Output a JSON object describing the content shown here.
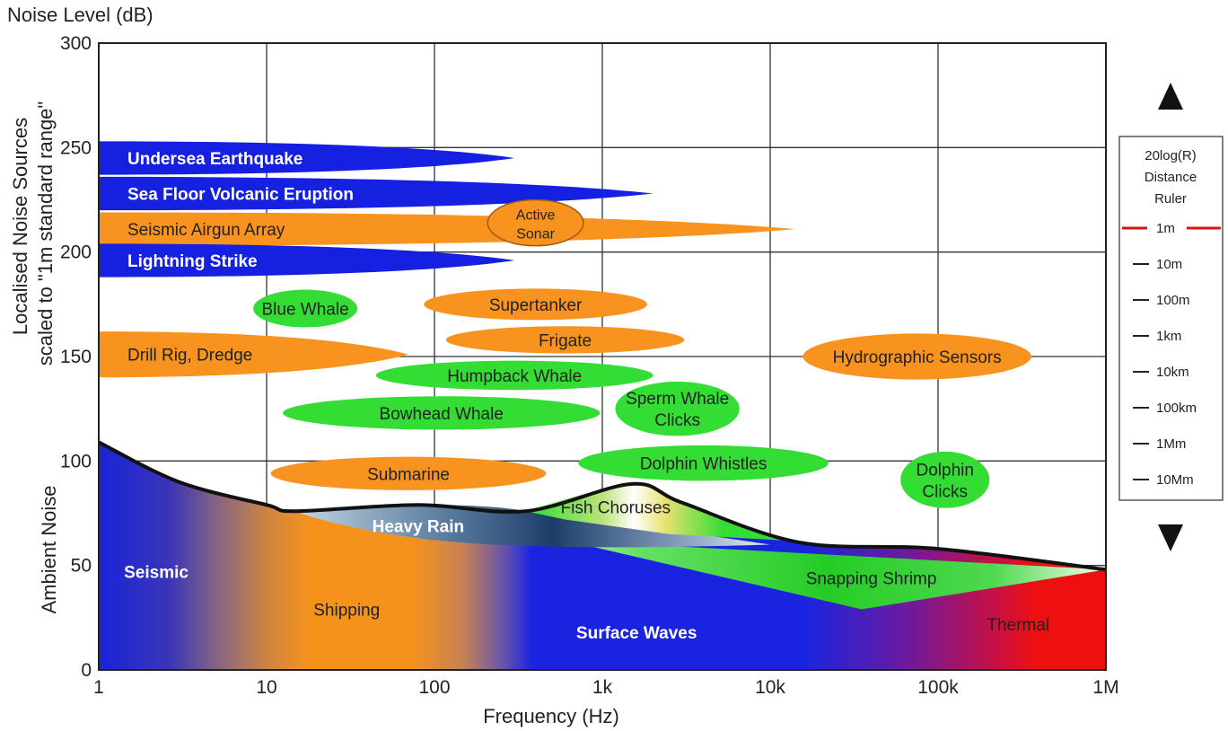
{
  "chart_data": {
    "type": "area",
    "title": "Noise Level (dB)",
    "xlabel": "Frequency (Hz)",
    "ylabel_upper_line1": "Localised Noise Sources",
    "ylabel_upper_line2": "scaled to \"1m standard range\"",
    "ylabel_lower": "Ambient Noise",
    "x_scale": "log",
    "xlim": [
      1,
      1000000
    ],
    "ylim": [
      0,
      300
    ],
    "grid": true,
    "x_ticks": [
      {
        "value": 1,
        "label": "1"
      },
      {
        "value": 10,
        "label": "10"
      },
      {
        "value": 100,
        "label": "100"
      },
      {
        "value": 1000,
        "label": "1k"
      },
      {
        "value": 10000,
        "label": "10k"
      },
      {
        "value": 100000,
        "label": "100k"
      },
      {
        "value": 1000000,
        "label": "1M"
      }
    ],
    "y_ticks": [
      {
        "value": 0,
        "label": "0"
      },
      {
        "value": 50,
        "label": "50"
      },
      {
        "value": 100,
        "label": "100"
      },
      {
        "value": 150,
        "label": "150"
      },
      {
        "value": 200,
        "label": "200"
      },
      {
        "value": 250,
        "label": "250"
      },
      {
        "value": 300,
        "label": "300"
      }
    ],
    "ambient_envelope": [
      {
        "f": 1,
        "db": 109
      },
      {
        "f": 3,
        "db": 90
      },
      {
        "f": 10,
        "db": 79
      },
      {
        "f": 15,
        "db": 76
      },
      {
        "f": 80,
        "db": 79
      },
      {
        "f": 350,
        "db": 76
      },
      {
        "f": 1500,
        "db": 89
      },
      {
        "f": 3000,
        "db": 80
      },
      {
        "f": 15000,
        "db": 61
      },
      {
        "f": 100000,
        "db": 58
      },
      {
        "f": 1000000,
        "db": 48
      }
    ],
    "ambient_sources": [
      {
        "name": "Seismic",
        "label": "Seismic",
        "f": 2.2,
        "db": 47,
        "bold": true,
        "color": "#ffffff"
      },
      {
        "name": "Shipping",
        "label": "Shipping",
        "f": 30,
        "db": 29,
        "bold": false,
        "color": "#222222"
      },
      {
        "name": "Surface Waves",
        "label": "Surface Waves",
        "f": 1600,
        "db": 18,
        "bold": true,
        "color": "#ffffff"
      },
      {
        "name": "Thermal",
        "label": "Thermal",
        "f": 300000,
        "db": 22,
        "bold": false,
        "color": "#222222"
      },
      {
        "name": "Heavy Rain",
        "label": "Heavy Rain",
        "f": 80,
        "db": 69,
        "bold": true,
        "color": "#ffffff"
      },
      {
        "name": "Fish Choruses",
        "label": "Fish Choruses",
        "f": 1200,
        "db": 78,
        "bold": false,
        "color": "#222222"
      },
      {
        "name": "Snapping Shrimp",
        "label": "Snapping Shrimp",
        "f": 40000,
        "db": 44,
        "bold": false,
        "color": "#222222"
      }
    ],
    "snapping_shrimp_region": [
      {
        "f": 600,
        "db": 62
      },
      {
        "f": 1000000,
        "db": 48
      },
      {
        "f": 35000,
        "db": 29
      }
    ],
    "heavy_rain_region": {
      "f_start": 15,
      "f_end": 10000,
      "db_top": 78,
      "db_bottom": 60
    },
    "fish_chorus_region": [
      {
        "f": 350,
        "db": 76
      },
      {
        "f": 1500,
        "db": 89
      },
      {
        "f": 3000,
        "db": 80
      },
      {
        "f": 12000,
        "db": 62
      }
    ],
    "sources": [
      {
        "name": "Undersea Earthquake",
        "shape": "wedge",
        "color": "#1520e0",
        "text_color": "#ffffff",
        "bold": true,
        "f_start": 1,
        "f_end": 300,
        "db": 245,
        "height_db": 16
      },
      {
        "name": "Sea Floor Volcanic Eruption",
        "shape": "wedge",
        "color": "#1520e0",
        "text_color": "#ffffff",
        "bold": true,
        "f_start": 1,
        "f_end": 2000,
        "db": 228,
        "height_db": 16
      },
      {
        "name": "Seismic Airgun Array",
        "shape": "wedge",
        "color": "#f7931e",
        "text_color": "#222222",
        "bold": false,
        "f_start": 1,
        "f_end": 14000,
        "db": 211,
        "height_db": 16
      },
      {
        "name": "Lightning Strike",
        "shape": "wedge",
        "color": "#1520e0",
        "text_color": "#ffffff",
        "bold": true,
        "f_start": 1,
        "f_end": 300,
        "db": 196,
        "height_db": 16
      },
      {
        "name": "Drill Rig, Dredge",
        "shape": "wedge",
        "color": "#f7931e",
        "text_color": "#222222",
        "bold": false,
        "f_start": 1,
        "f_end": 70,
        "db": 151,
        "height_db": 22
      },
      {
        "name": "Active Sonar",
        "label_lines": [
          "Active",
          "Sonar"
        ],
        "shape": "ellipse",
        "color": "#f7931e",
        "text_color": "#222222",
        "bold": false,
        "f_center": 400,
        "db": 214,
        "f_span_log": 0.57,
        "height_db": 22,
        "outline": true
      },
      {
        "name": "Blue Whale",
        "shape": "ellipse",
        "color": "#33dd33",
        "text_color": "#222222",
        "bold": false,
        "f_center": 17,
        "db": 173,
        "f_span_log": 0.62,
        "height_db": 18
      },
      {
        "name": "Supertanker",
        "shape": "ellipse",
        "color": "#f7931e",
        "text_color": "#222222",
        "bold": false,
        "f_center": 400,
        "db": 175,
        "f_span_log": 1.33,
        "height_db": 15
      },
      {
        "name": "Frigate",
        "shape": "ellipse",
        "color": "#f7931e",
        "text_color": "#222222",
        "bold": false,
        "f_center": 600,
        "db": 158,
        "f_span_log": 1.42,
        "height_db": 13
      },
      {
        "name": "Humpback Whale",
        "shape": "ellipse",
        "color": "#33dd33",
        "text_color": "#222222",
        "bold": false,
        "f_center": 300,
        "db": 141,
        "f_span_log": 1.65,
        "height_db": 14
      },
      {
        "name": "Bowhead Whale",
        "shape": "ellipse",
        "color": "#33dd33",
        "text_color": "#222222",
        "bold": false,
        "f_center": 110,
        "db": 123,
        "f_span_log": 1.89,
        "height_db": 16
      },
      {
        "name": "Submarine",
        "shape": "ellipse",
        "color": "#f7931e",
        "text_color": "#222222",
        "bold": false,
        "f_center": 70,
        "db": 94,
        "f_span_log": 1.64,
        "height_db": 16
      },
      {
        "name": "Sperm Whale Clicks",
        "label_lines": [
          "Sperm Whale",
          "Clicks"
        ],
        "shape": "ellipse",
        "color": "#33dd33",
        "text_color": "#222222",
        "bold": false,
        "f_center": 2800,
        "db": 125,
        "f_span_log": 0.74,
        "height_db": 26
      },
      {
        "name": "Dolphin Whistles",
        "shape": "ellipse",
        "color": "#33dd33",
        "text_color": "#222222",
        "bold": false,
        "f_center": 4000,
        "db": 99,
        "f_span_log": 1.49,
        "height_db": 17
      },
      {
        "name": "Hydrographic Sensors",
        "shape": "ellipse",
        "color": "#f7931e",
        "text_color": "#222222",
        "bold": false,
        "f_center": 75000,
        "db": 150,
        "f_span_log": 1.36,
        "height_db": 22
      },
      {
        "name": "Dolphin Clicks",
        "label_lines": [
          "Dolphin",
          "Clicks"
        ],
        "shape": "ellipse",
        "color": "#33dd33",
        "text_color": "#222222",
        "bold": false,
        "f_center": 110000,
        "db": 91,
        "f_span_log": 0.53,
        "height_db": 27
      }
    ]
  },
  "ruler": {
    "title_lines": [
      "20log(R)",
      "Distance",
      "Ruler"
    ],
    "marks": [
      "1m",
      "10m",
      "100m",
      "1km",
      "10km",
      "100km",
      "1Mm",
      "10Mm"
    ],
    "highlight_index": 0,
    "highlight_color": "#dd1111"
  }
}
